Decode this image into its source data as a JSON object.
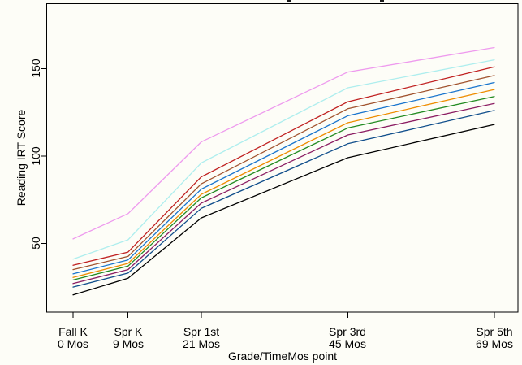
{
  "figure": {
    "background": "#fdfdf7",
    "axis_color": "#000000",
    "note_cropped_title": "only two descender tips of an off-screen title are visible at the top edge"
  },
  "chart_data": {
    "type": "line",
    "title": "",
    "xlabel": "Grade/TimeMos point",
    "ylabel": "Reading IRT Score",
    "x_months": [
      0,
      9,
      21,
      45,
      69
    ],
    "x_tick_labels": [
      [
        "Fall K",
        "0 Mos"
      ],
      [
        "Spr K",
        "9 Mos"
      ],
      [
        "Spr 1st",
        "21 Mos"
      ],
      [
        "Spr 3rd",
        "45 Mos"
      ],
      [
        "Spr 5th",
        "69 Mos"
      ]
    ],
    "y_ticks": [
      50,
      100,
      150
    ],
    "ylim": [
      11,
      187
    ],
    "grid": false,
    "legend": "none",
    "series": [
      {
        "name": "pink",
        "color": "#EE9AEE",
        "values": [
          52.5,
          67,
          108,
          148,
          162
        ]
      },
      {
        "name": "pale-cyan",
        "color": "#AEEEEE",
        "values": [
          41,
          52,
          96,
          139,
          155
        ]
      },
      {
        "name": "red",
        "color": "#C02020",
        "values": [
          37.5,
          45,
          88,
          131,
          151
        ]
      },
      {
        "name": "brown",
        "color": "#A0522D",
        "values": [
          35,
          42.5,
          84,
          127,
          146
        ]
      },
      {
        "name": "blue",
        "color": "#1874CD",
        "values": [
          32.5,
          40.5,
          81,
          123,
          142
        ]
      },
      {
        "name": "orange",
        "color": "#EE8C00",
        "values": [
          30.5,
          38.5,
          78,
          119,
          138
        ]
      },
      {
        "name": "green",
        "color": "#228B22",
        "values": [
          29,
          37,
          76,
          116,
          134
        ]
      },
      {
        "name": "maroon",
        "color": "#8B1C62",
        "values": [
          27,
          35,
          73,
          112,
          130
        ]
      },
      {
        "name": "dark-blue",
        "color": "#104E8B",
        "values": [
          25,
          33,
          70,
          107,
          126
        ]
      },
      {
        "name": "black",
        "color": "#000000",
        "values": [
          20.5,
          30,
          64.5,
          99,
          118
        ]
      }
    ]
  }
}
